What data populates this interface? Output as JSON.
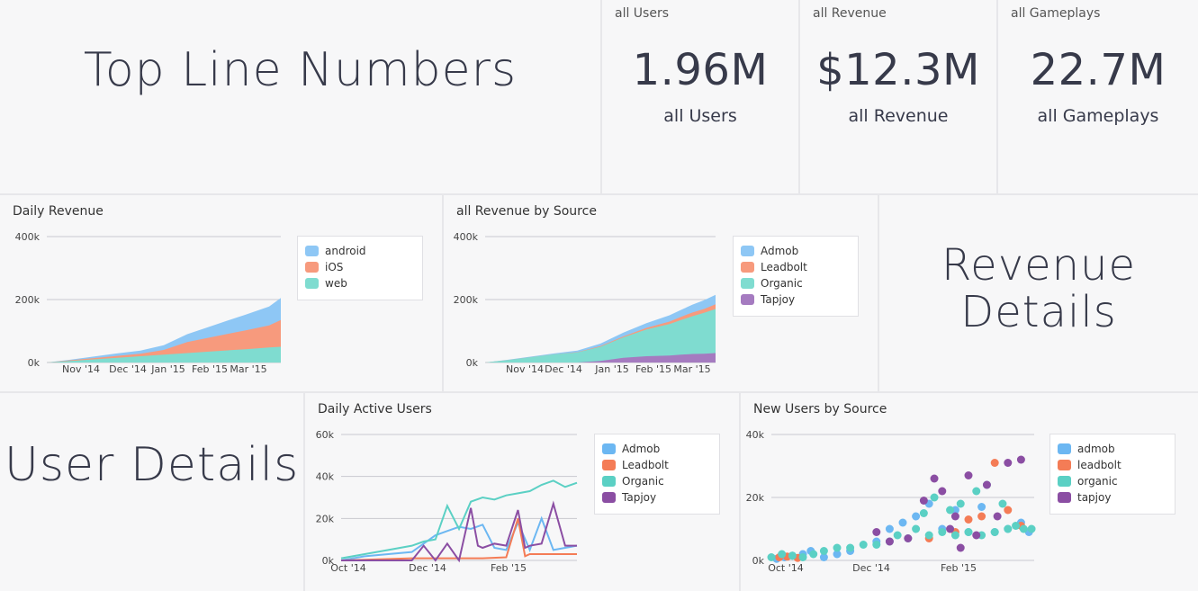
{
  "sections": {
    "top_title": "Top Line Numbers",
    "revenue_title": "Revenue Details",
    "user_title": "User Details"
  },
  "kpis": [
    {
      "label": "all Users",
      "value": "1.96M",
      "sub": "all Users"
    },
    {
      "label": "all Revenue",
      "value": "$12.3M",
      "sub": "all Revenue"
    },
    {
      "label": "all Gameplays",
      "value": "22.7M",
      "sub": "all Gameplays"
    }
  ],
  "colors": {
    "android": "#8ec7f5",
    "ios": "#f79a7d",
    "web": "#7fdcd0",
    "admob": "#6cb7f2",
    "leadbolt": "#f47c56",
    "organic": "#5bd0c4",
    "tapjoy": "#8b4ea3",
    "admob_area": "#8ec7f5",
    "leadbolt_area": "#f79a7d",
    "organic_area": "#7fdcd0",
    "tapjoy_area": "#a57bc0"
  },
  "chart_data": [
    {
      "type": "area",
      "title": "Daily Revenue",
      "y_ticks": [
        "400k",
        "200k",
        "0k"
      ],
      "ylim": [
        0,
        400000
      ],
      "x_ticks": [
        "Nov '14",
        "Dec '14",
        "Jan '15",
        "Feb '15",
        "Mar '15"
      ],
      "stacked": true,
      "legend": "top-right",
      "series": [
        {
          "name": "android",
          "color": "#8ec7f5",
          "x": [
            0,
            10,
            20,
            30,
            40,
            50,
            60,
            70,
            80,
            85,
            90,
            95,
            100
          ],
          "values": [
            0,
            2000,
            5000,
            8000,
            10000,
            15000,
            25000,
            35000,
            45000,
            50000,
            55000,
            60000,
            70000
          ]
        },
        {
          "name": "iOS",
          "color": "#f79a7d",
          "x": [
            0,
            10,
            20,
            30,
            40,
            50,
            60,
            70,
            80,
            85,
            90,
            95,
            100
          ],
          "values": [
            0,
            2000,
            4000,
            6000,
            8000,
            15000,
            35000,
            45000,
            55000,
            60000,
            65000,
            70000,
            85000
          ]
        },
        {
          "name": "web",
          "color": "#7fdcd0",
          "x": [
            0,
            10,
            20,
            30,
            40,
            50,
            60,
            70,
            80,
            85,
            90,
            95,
            100
          ],
          "values": [
            0,
            5000,
            10000,
            15000,
            20000,
            25000,
            30000,
            35000,
            40000,
            42000,
            45000,
            48000,
            50000
          ]
        }
      ]
    },
    {
      "type": "area",
      "title": "all Revenue by Source",
      "y_ticks": [
        "400k",
        "200k",
        "0k"
      ],
      "ylim": [
        0,
        400000
      ],
      "x_ticks": [
        "Nov '14",
        "Dec '14",
        "Jan '15",
        "Feb '15",
        "Mar '15"
      ],
      "stacked": true,
      "legend": "top-right",
      "series": [
        {
          "name": "Admob",
          "color": "#8ec7f5",
          "x": [
            0,
            10,
            20,
            30,
            40,
            50,
            60,
            70,
            80,
            85,
            90,
            95,
            100
          ],
          "values": [
            0,
            1000,
            2000,
            3000,
            5000,
            8000,
            12000,
            15000,
            20000,
            22000,
            25000,
            28000,
            30000
          ]
        },
        {
          "name": "Leadbolt",
          "color": "#f79a7d",
          "x": [
            0,
            10,
            20,
            30,
            40,
            50,
            60,
            70,
            80,
            85,
            90,
            95,
            100
          ],
          "values": [
            0,
            0,
            0,
            0,
            1000,
            2000,
            3000,
            5000,
            8000,
            10000,
            12000,
            12000,
            15000
          ]
        },
        {
          "name": "Organic",
          "color": "#7fdcd0",
          "x": [
            0,
            10,
            20,
            30,
            40,
            50,
            60,
            70,
            80,
            85,
            90,
            95,
            100
          ],
          "values": [
            0,
            8000,
            17000,
            26000,
            32000,
            45000,
            65000,
            85000,
            100000,
            110000,
            120000,
            130000,
            140000
          ]
        },
        {
          "name": "Tapjoy",
          "color": "#a57bc0",
          "x": [
            0,
            10,
            20,
            30,
            40,
            50,
            60,
            70,
            80,
            85,
            90,
            95,
            100
          ],
          "values": [
            0,
            0,
            0,
            0,
            0,
            5000,
            15000,
            20000,
            22000,
            25000,
            27000,
            28000,
            30000
          ]
        }
      ]
    },
    {
      "type": "line",
      "title": "Daily Active Users",
      "y_ticks": [
        "60k",
        "40k",
        "20k",
        "0k"
      ],
      "ylim": [
        0,
        60000
      ],
      "x_ticks": [
        "Oct '14",
        "Dec '14",
        "Feb '15"
      ],
      "legend": "top-right",
      "series": [
        {
          "name": "Admob",
          "color": "#6cb7f2",
          "x": [
            0,
            10,
            20,
            30,
            35,
            40,
            45,
            50,
            55,
            60,
            65,
            70,
            75,
            80,
            85,
            90,
            95,
            100
          ],
          "values": [
            0,
            2000,
            3000,
            4000,
            8000,
            12000,
            14000,
            16000,
            15000,
            17000,
            6000,
            5000,
            18000,
            5000,
            20000,
            5000,
            6000,
            7000
          ]
        },
        {
          "name": "Leadbolt",
          "color": "#f47c56",
          "x": [
            0,
            30,
            40,
            50,
            60,
            70,
            75,
            78,
            80,
            85,
            90,
            95,
            100
          ],
          "values": [
            0,
            1000,
            1000,
            1000,
            1000,
            1500,
            20000,
            2000,
            3000,
            3000,
            3000,
            3000,
            3000
          ]
        },
        {
          "name": "Organic",
          "color": "#5bd0c4",
          "x": [
            0,
            10,
            20,
            30,
            35,
            40,
            45,
            50,
            55,
            60,
            65,
            70,
            75,
            80,
            85,
            90,
            95,
            100
          ],
          "values": [
            1000,
            3000,
            5000,
            7000,
            9000,
            10000,
            26000,
            15000,
            28000,
            30000,
            29000,
            31000,
            32000,
            33000,
            36000,
            38000,
            35000,
            37000
          ]
        },
        {
          "name": "Tapjoy",
          "color": "#8b4ea3",
          "x": [
            0,
            30,
            35,
            40,
            45,
            50,
            55,
            58,
            60,
            65,
            70,
            75,
            78,
            80,
            85,
            90,
            95,
            100
          ],
          "values": [
            0,
            0,
            7000,
            0,
            8000,
            0,
            25000,
            7000,
            6000,
            8000,
            7000,
            24000,
            6000,
            7000,
            8000,
            27000,
            7000,
            7000
          ]
        }
      ]
    },
    {
      "type": "scatter",
      "title": "New Users by Source",
      "y_ticks": [
        "40k",
        "20k",
        "0k"
      ],
      "ylim": [
        0,
        40000
      ],
      "x_ticks": [
        "Oct '14",
        "Dec '14",
        "Feb '15"
      ],
      "legend": "top-right",
      "series": [
        {
          "name": "admob",
          "color": "#6cb7f2",
          "points": [
            [
              2,
              500
            ],
            [
              5,
              1000
            ],
            [
              8,
              1500
            ],
            [
              12,
              2000
            ],
            [
              15,
              3000
            ],
            [
              20,
              1000
            ],
            [
              25,
              2000
            ],
            [
              30,
              3000
            ],
            [
              40,
              6000
            ],
            [
              45,
              10000
            ],
            [
              50,
              12000
            ],
            [
              55,
              14000
            ],
            [
              60,
              18000
            ],
            [
              65,
              10000
            ],
            [
              70,
              16000
            ],
            [
              75,
              9000
            ],
            [
              80,
              17000
            ],
            [
              85,
              9000
            ],
            [
              90,
              10000
            ],
            [
              95,
              12000
            ],
            [
              98,
              9000
            ]
          ]
        },
        {
          "name": "leadbolt",
          "color": "#f47c56",
          "points": [
            [
              3,
              1000
            ],
            [
              6,
              1200
            ],
            [
              10,
              800
            ],
            [
              60,
              7000
            ],
            [
              70,
              9000
            ],
            [
              75,
              13000
            ],
            [
              80,
              14000
            ],
            [
              85,
              31000
            ],
            [
              90,
              16000
            ],
            [
              95,
              11000
            ]
          ]
        },
        {
          "name": "organic",
          "color": "#5bd0c4",
          "points": [
            [
              0,
              1000
            ],
            [
              4,
              2000
            ],
            [
              8,
              1500
            ],
            [
              12,
              1000
            ],
            [
              16,
              2000
            ],
            [
              20,
              3000
            ],
            [
              25,
              4000
            ],
            [
              30,
              4000
            ],
            [
              35,
              5000
            ],
            [
              40,
              5000
            ],
            [
              45,
              6000
            ],
            [
              48,
              8000
            ],
            [
              52,
              7000
            ],
            [
              55,
              10000
            ],
            [
              58,
              15000
            ],
            [
              60,
              8000
            ],
            [
              62,
              20000
            ],
            [
              65,
              9000
            ],
            [
              68,
              16000
            ],
            [
              70,
              8000
            ],
            [
              72,
              18000
            ],
            [
              75,
              9000
            ],
            [
              78,
              22000
            ],
            [
              80,
              8000
            ],
            [
              82,
              24000
            ],
            [
              85,
              9000
            ],
            [
              88,
              18000
            ],
            [
              90,
              10000
            ],
            [
              93,
              11000
            ],
            [
              96,
              10000
            ],
            [
              99,
              10000
            ]
          ]
        },
        {
          "name": "tapjoy",
          "color": "#8b4ea3",
          "points": [
            [
              40,
              9000
            ],
            [
              45,
              6000
            ],
            [
              52,
              7000
            ],
            [
              58,
              19000
            ],
            [
              62,
              26000
            ],
            [
              65,
              22000
            ],
            [
              68,
              10000
            ],
            [
              70,
              14000
            ],
            [
              72,
              4000
            ],
            [
              75,
              27000
            ],
            [
              78,
              8000
            ],
            [
              82,
              24000
            ],
            [
              86,
              14000
            ],
            [
              90,
              31000
            ],
            [
              95,
              32000
            ]
          ]
        }
      ]
    }
  ]
}
